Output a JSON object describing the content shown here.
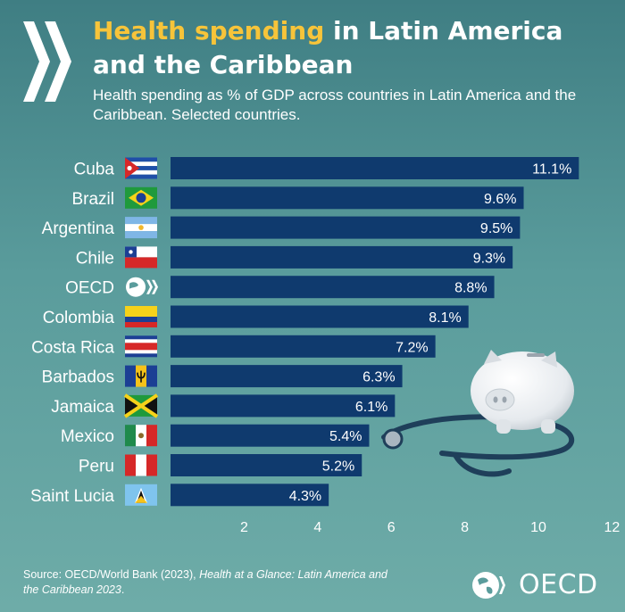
{
  "header": {
    "title_highlight": "Health spending",
    "title_rest": " in Latin America and the Caribbean",
    "subtitle": "Health spending as % of GDP across countries in Latin America and the Caribbean. Selected countries."
  },
  "footer": {
    "source_prefix": "Source: OECD/World Bank (2023), ",
    "source_title": "Health at a Glance: Latin America and the Caribbean 2023",
    "source_suffix": ".",
    "logo_text": "OECD"
  },
  "colors": {
    "bar": "#0f3a6e",
    "bar_edge": "#0a2d57",
    "title_accent": "#f7c43a",
    "background_top": "#3f7e83",
    "background_bottom": "#6eaca8"
  },
  "chart_data": {
    "type": "bar",
    "orientation": "horizontal",
    "categories": [
      "Cuba",
      "Brazil",
      "Argentina",
      "Chile",
      "OECD",
      "Colombia",
      "Costa Rica",
      "Barbados",
      "Jamaica",
      "Mexico",
      "Peru",
      "Saint Lucia"
    ],
    "flags": [
      "cuba",
      "brazil",
      "argentina",
      "chile",
      "oecd",
      "colombia",
      "costa-rica",
      "barbados",
      "jamaica",
      "mexico",
      "peru",
      "saint-lucia"
    ],
    "values": [
      11.1,
      9.6,
      9.5,
      9.3,
      8.8,
      8.1,
      7.2,
      6.3,
      6.1,
      5.4,
      5.2,
      4.3
    ],
    "value_labels": [
      "11.1%",
      "9.6%",
      "9.5%",
      "9.3%",
      "8.8%",
      "8.1%",
      "7.2%",
      "6.3%",
      "6.1%",
      "5.4%",
      "5.2%",
      "4.3%"
    ],
    "xlim": [
      0,
      12
    ],
    "xticks": [
      2,
      4,
      6,
      8,
      10,
      12
    ],
    "xlabel": "",
    "ylabel": "",
    "grid": false,
    "legend": "none"
  }
}
